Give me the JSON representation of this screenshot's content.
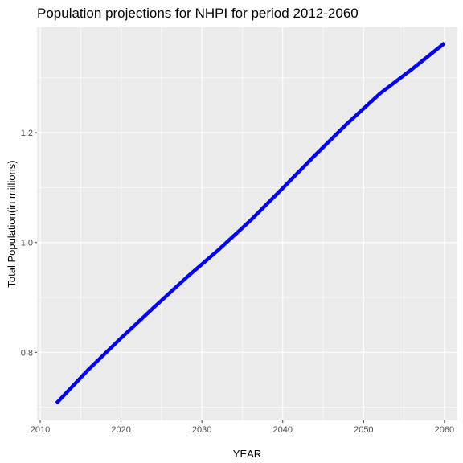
{
  "chart_data": {
    "type": "line",
    "title": "Population projections for NHPI for period 2012-2060",
    "xlabel": "YEAR",
    "ylabel": "Total Population(in millions)",
    "xlim": [
      2009.6,
      2061.6
    ],
    "ylim": [
      0.676,
      1.392
    ],
    "x_ticks": [
      2010,
      2020,
      2030,
      2040,
      2050,
      2060
    ],
    "x_tick_labels": [
      "2010",
      "2020",
      "2030",
      "2040",
      "2050",
      "2060"
    ],
    "y_ticks": [
      0.8,
      1.0,
      1.2
    ],
    "y_tick_labels": [
      "0.8",
      "1.0",
      "1.2"
    ],
    "grid": true,
    "colors": {
      "panel_background": "#ebebeb",
      "grid_line": "#ffffff",
      "tick_mark": "#333333",
      "tick_label": "#4d4d4d"
    },
    "series": [
      {
        "color": "#0000ee",
        "x": [
          2012,
          2016,
          2020,
          2024,
          2028,
          2032,
          2036,
          2040,
          2044,
          2048,
          2052,
          2056,
          2060
        ],
        "y": [
          0.707,
          0.769,
          0.826,
          0.881,
          0.935,
          0.986,
          1.04,
          1.099,
          1.159,
          1.217,
          1.271,
          1.316,
          1.363
        ]
      }
    ]
  }
}
